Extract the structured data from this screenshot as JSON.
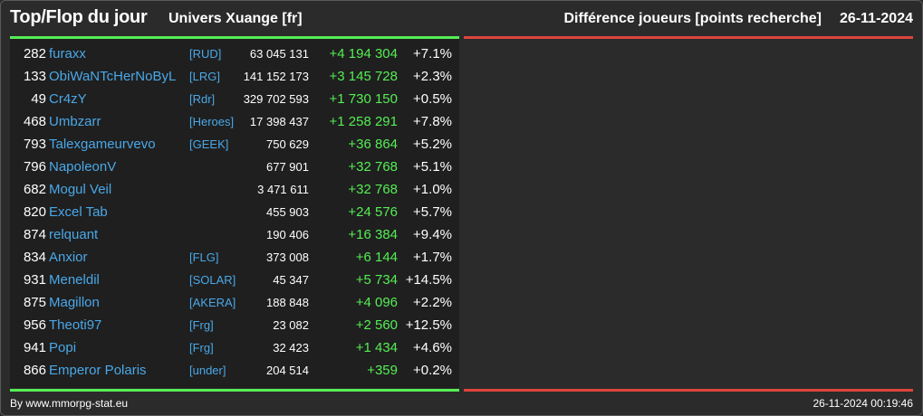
{
  "header": {
    "title": "Top/Flop du jour",
    "subtitle": "Univers Xuange [fr]",
    "metric": "Différence joueurs [points recherche]",
    "date": "26-11-2024"
  },
  "colors": {
    "positive": "#55ee55",
    "negative": "#e0443e",
    "link": "#4aa8e8"
  },
  "table": {
    "rows": [
      {
        "rank": "282",
        "name": "furaxx",
        "alliance": "[RUD]",
        "points": "63 045 131",
        "diff": "+4 194 304",
        "pct": "+7.1%"
      },
      {
        "rank": "133",
        "name": "ObiWaNTcHerNoByL",
        "alliance": "[LRG]",
        "points": "141 152 173",
        "diff": "+3 145 728",
        "pct": "+2.3%"
      },
      {
        "rank": "49",
        "name": "Cr4zY",
        "alliance": "[Rdr]",
        "points": "329 702 593",
        "diff": "+1 730 150",
        "pct": "+0.5%"
      },
      {
        "rank": "468",
        "name": "Umbzarr",
        "alliance": "[Heroes]",
        "points": "17 398 437",
        "diff": "+1 258 291",
        "pct": "+7.8%"
      },
      {
        "rank": "793",
        "name": "Talexgameurvevo",
        "alliance": "[GEEK]",
        "points": "750 629",
        "diff": "+36 864",
        "pct": "+5.2%"
      },
      {
        "rank": "796",
        "name": "NapoleonV",
        "alliance": "",
        "points": "677 901",
        "diff": "+32 768",
        "pct": "+5.1%"
      },
      {
        "rank": "682",
        "name": "Mogul Veil",
        "alliance": "",
        "points": "3 471 611",
        "diff": "+32 768",
        "pct": "+1.0%"
      },
      {
        "rank": "820",
        "name": "Excel Tab",
        "alliance": "",
        "points": "455 903",
        "diff": "+24 576",
        "pct": "+5.7%"
      },
      {
        "rank": "874",
        "name": "relquant",
        "alliance": "",
        "points": "190 406",
        "diff": "+16 384",
        "pct": "+9.4%"
      },
      {
        "rank": "834",
        "name": "Anxior",
        "alliance": "[FLG]",
        "points": "373 008",
        "diff": "+6 144",
        "pct": "+1.7%"
      },
      {
        "rank": "931",
        "name": "Meneldil",
        "alliance": "[SOLAR]",
        "points": "45 347",
        "diff": "+5 734",
        "pct": "+14.5%"
      },
      {
        "rank": "875",
        "name": "Magillon",
        "alliance": "[AKERA]",
        "points": "188 848",
        "diff": "+4 096",
        "pct": "+2.2%"
      },
      {
        "rank": "956",
        "name": "Theoti97",
        "alliance": "[Frg]",
        "points": "23 082",
        "diff": "+2 560",
        "pct": "+12.5%"
      },
      {
        "rank": "941",
        "name": "Popi",
        "alliance": "[Frg]",
        "points": "32 423",
        "diff": "+1 434",
        "pct": "+4.6%"
      },
      {
        "rank": "866",
        "name": "Emperor Polaris",
        "alliance": "[under]",
        "points": "204 514",
        "diff": "+359",
        "pct": "+0.2%"
      }
    ]
  },
  "footer": {
    "source": "By www.mmorpg-stat.eu",
    "timestamp": "26-11-2024 00:19:46"
  }
}
